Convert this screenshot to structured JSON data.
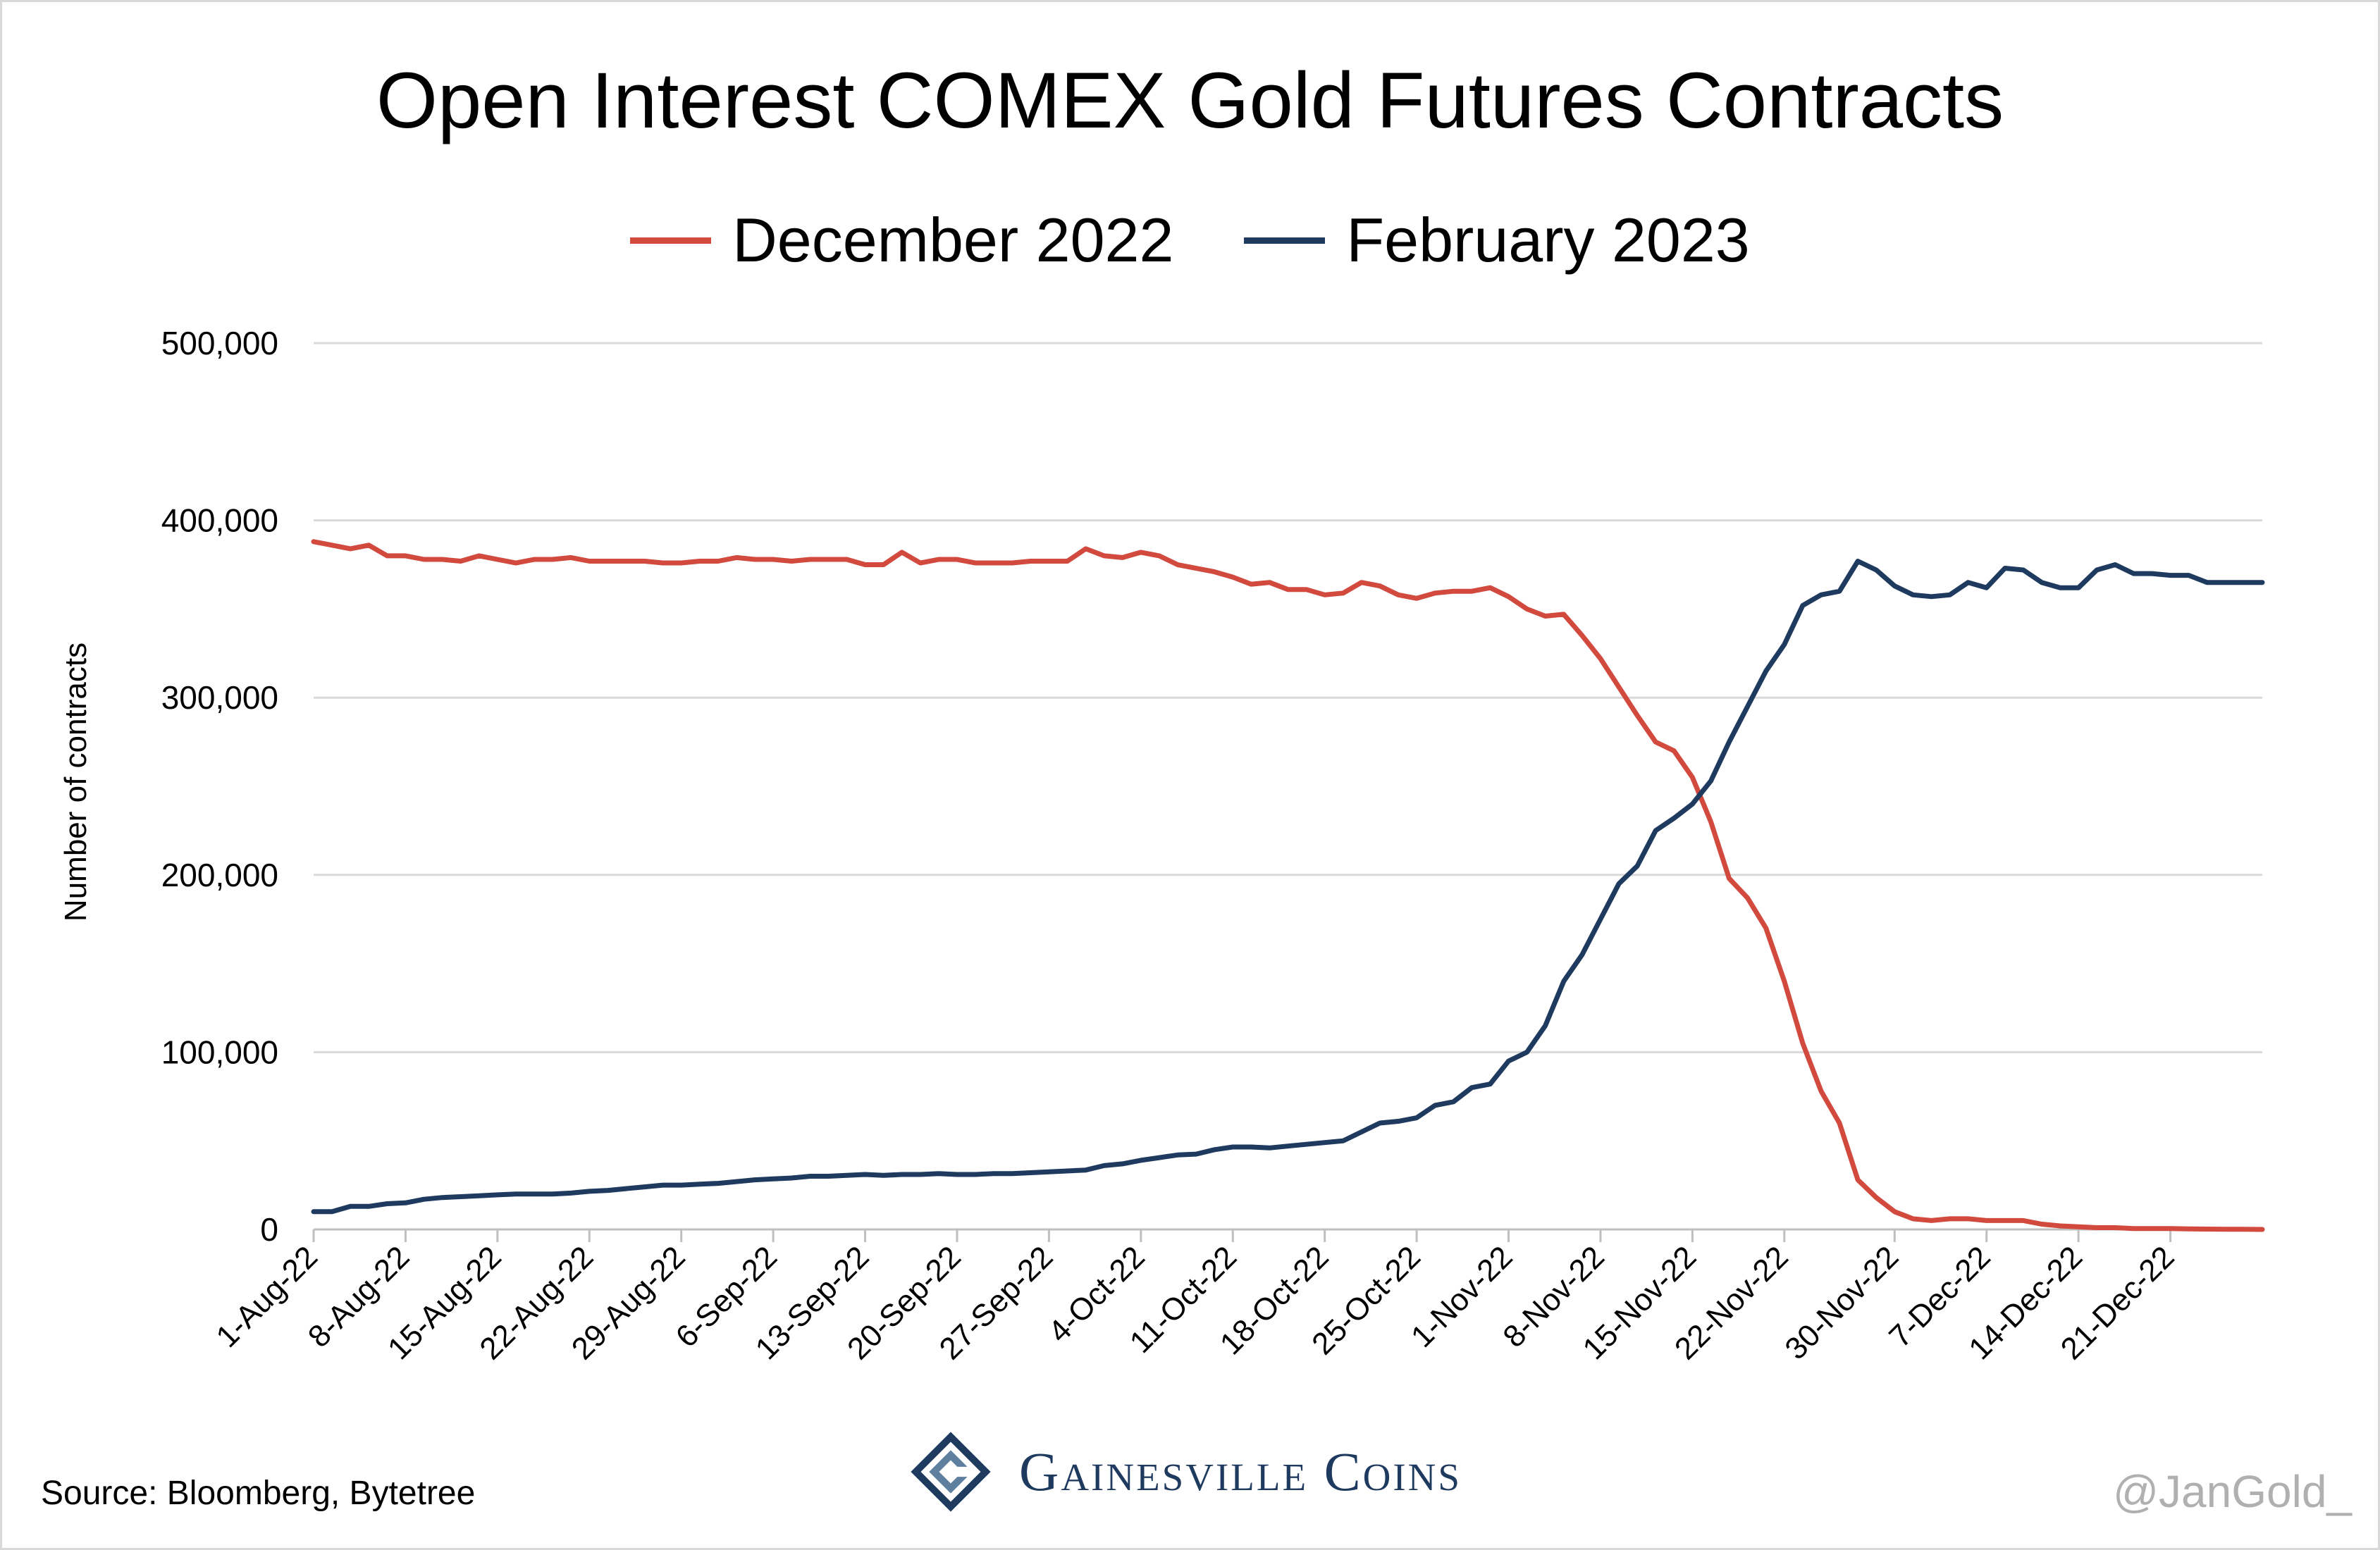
{
  "chart_data": {
    "type": "line",
    "title": "Open Interest COMEX Gold Futures Contracts",
    "xlabel": "",
    "ylabel": "Number of contracts",
    "ylim": [
      0,
      500000
    ],
    "yticks": [
      "0",
      "100,000",
      "200,000",
      "300,000",
      "400,000",
      "500,000"
    ],
    "grid": true,
    "legend_position": "top-center",
    "x_tick_labels": [
      "1-Aug-22",
      "8-Aug-22",
      "15-Aug-22",
      "22-Aug-22",
      "29-Aug-22",
      "6-Sep-22",
      "13-Sep-22",
      "20-Sep-22",
      "27-Sep-22",
      "4-Oct-22",
      "11-Oct-22",
      "18-Oct-22",
      "25-Oct-22",
      "1-Nov-22",
      "8-Nov-22",
      "15-Nov-22",
      "22-Nov-22",
      "30-Nov-22",
      "7-Dec-22",
      "14-Dec-22",
      "21-Dec-22"
    ],
    "x_tick_index": [
      0,
      5,
      10,
      15,
      20,
      25,
      30,
      35,
      40,
      45,
      50,
      55,
      60,
      65,
      70,
      75,
      80,
      86,
      91,
      96,
      101
    ],
    "point_count": 107,
    "series": [
      {
        "name": "December 2022",
        "color": "#d2493e",
        "values": [
          388000,
          386000,
          384000,
          386000,
          380000,
          380000,
          378000,
          378000,
          377000,
          380000,
          378000,
          376000,
          378000,
          378000,
          379000,
          377000,
          377000,
          377000,
          377000,
          376000,
          376000,
          377000,
          377000,
          379000,
          378000,
          378000,
          377000,
          378000,
          378000,
          378000,
          375000,
          375000,
          382000,
          376000,
          378000,
          378000,
          376000,
          376000,
          376000,
          377000,
          377000,
          377000,
          384000,
          380000,
          379000,
          382000,
          380000,
          375000,
          373000,
          371000,
          368000,
          364000,
          365000,
          361000,
          361000,
          358000,
          359000,
          365000,
          363000,
          358000,
          356000,
          359000,
          360000,
          360000,
          362000,
          357000,
          350000,
          346000,
          347000,
          335000,
          322000,
          306000,
          290000,
          275000,
          270000,
          255000,
          230000,
          198000,
          187000,
          170000,
          140000,
          105000,
          78000,
          60000,
          28000,
          18000,
          10000,
          6000,
          5000,
          6000,
          6000,
          5000,
          5000,
          5000,
          3000,
          2000,
          1500,
          1000,
          1000,
          500,
          500,
          500,
          300,
          200,
          100,
          100,
          0
        ]
      },
      {
        "name": "February 2023",
        "color": "#1f3a5f",
        "values": [
          10000,
          10000,
          13000,
          13000,
          14500,
          15000,
          17000,
          18000,
          18500,
          19000,
          19500,
          20000,
          20000,
          20000,
          20500,
          21500,
          22000,
          23000,
          24000,
          25000,
          25000,
          25500,
          26000,
          27000,
          28000,
          28500,
          29000,
          30000,
          30000,
          30500,
          31000,
          30500,
          31000,
          31000,
          31500,
          31000,
          31000,
          31500,
          31500,
          32000,
          32500,
          33000,
          33500,
          36000,
          37000,
          39000,
          40500,
          42000,
          42500,
          45000,
          46500,
          46500,
          46000,
          47000,
          48000,
          49000,
          50000,
          55000,
          60000,
          61000,
          63000,
          70000,
          72000,
          80000,
          82000,
          95000,
          100000,
          115000,
          140000,
          155000,
          175000,
          195000,
          205000,
          225000,
          232000,
          240000,
          253000,
          275000,
          295000,
          315000,
          330000,
          352000,
          358000,
          360000,
          377000,
          372000,
          363000,
          358000,
          357000,
          358000,
          365000,
          362000,
          373000,
          372000,
          365000,
          362000,
          362000,
          372000,
          375000,
          370000,
          370000,
          369000,
          369000,
          365000,
          365000,
          365000,
          365000
        ]
      }
    ]
  },
  "source": "Source: Bloomberg, Bytetree",
  "logo_text": "Gainesville Coins",
  "handle": "@JanGold_"
}
